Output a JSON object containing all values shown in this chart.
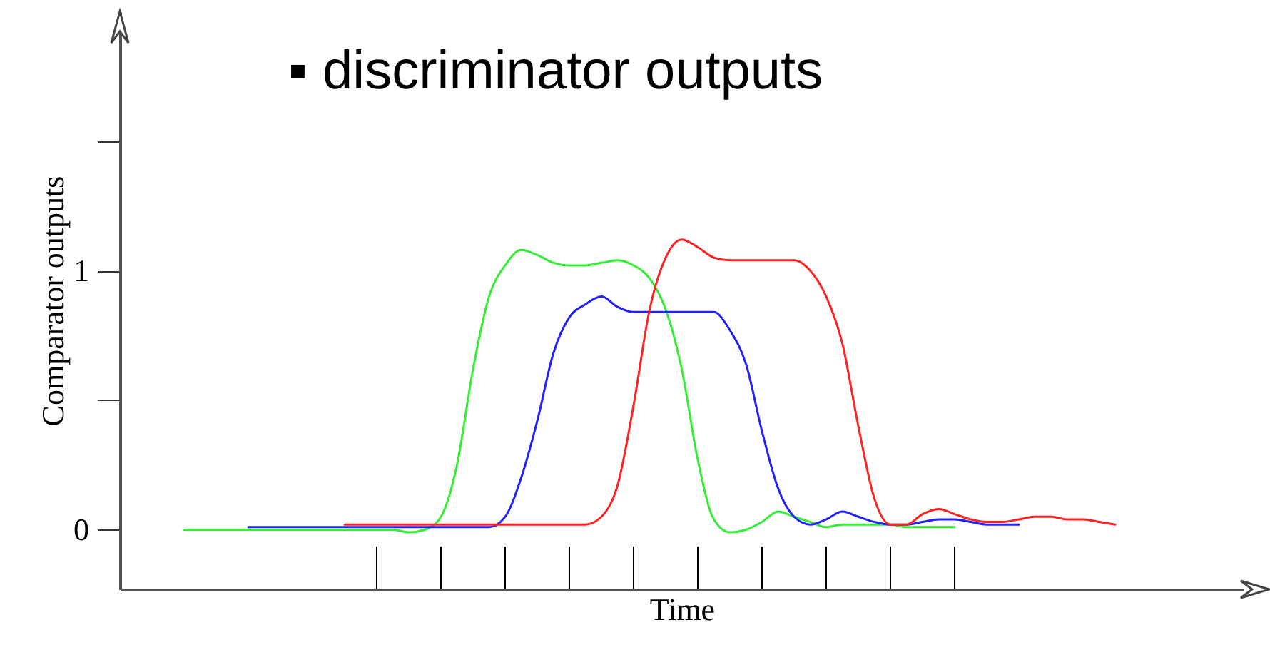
{
  "chart_data": {
    "type": "line",
    "title": "▪ discriminator outputs",
    "xlabel": "Time",
    "ylabel": "Comparator outputs",
    "categories": [
      null,
      null,
      null,
      null,
      null,
      null,
      null,
      null,
      null,
      null,
      null,
      null,
      null,
      null,
      null,
      null,
      null,
      null,
      null,
      null,
      null,
      null,
      null,
      null,
      null,
      null,
      null,
      null,
      null,
      null,
      null,
      null,
      null,
      null,
      null,
      null,
      null,
      null,
      null,
      null,
      null,
      null,
      null,
      null,
      null,
      null,
      null,
      null,
      null,
      null,
      null,
      null,
      null,
      null,
      null,
      null,
      null,
      null,
      null,
      null,
      null,
      null,
      null,
      null,
      null,
      null,
      null,
      null,
      null,
      null,
      null
    ],
    "series": [
      {
        "color": "#33ee33",
        "values": [
          null,
          null,
          null,
          null,
          0,
          0,
          0,
          0,
          0,
          0,
          0,
          0,
          0,
          0,
          0,
          0,
          0,
          0,
          -0.01,
          0,
          0.05,
          0.25,
          0.62,
          0.9,
          1.02,
          1.08,
          1.06,
          1.03,
          1.02,
          1.02,
          1.03,
          1.04,
          1.02,
          0.97,
          0.85,
          0.62,
          0.27,
          0.04,
          -0.01,
          0,
          0.03,
          0.07,
          0.05,
          0.03,
          0.01,
          0.02,
          0.02,
          0.02,
          0.02,
          0.01,
          0.01,
          0.01,
          0.01,
          null,
          null,
          null,
          null,
          null,
          null,
          null,
          null,
          null,
          null,
          null,
          null,
          null,
          null,
          null,
          null,
          null,
          null
        ]
      },
      {
        "color": "#2222ff",
        "values": [
          null,
          null,
          null,
          null,
          null,
          null,
          null,
          null,
          0.01,
          0.01,
          0.01,
          0.01,
          0.01,
          0.01,
          0.01,
          0.01,
          0.01,
          0.01,
          0.01,
          0.01,
          0.01,
          0.01,
          0.01,
          0.01,
          0.05,
          0.2,
          0.42,
          0.68,
          0.82,
          0.87,
          0.9,
          0.86,
          0.84,
          0.84,
          0.84,
          0.84,
          0.84,
          0.84,
          0.77,
          0.64,
          0.38,
          0.16,
          0.05,
          0.02,
          0.04,
          0.07,
          0.05,
          0.03,
          0.02,
          0.02,
          0.03,
          0.04,
          0.04,
          0.03,
          0.02,
          0.02,
          0.02,
          null,
          null,
          null,
          null,
          null,
          null,
          null,
          null,
          null,
          null,
          null,
          null,
          null,
          null
        ]
      },
      {
        "color": "#ff2222",
        "values": [
          null,
          null,
          null,
          null,
          null,
          null,
          null,
          null,
          null,
          null,
          null,
          null,
          null,
          null,
          0.02,
          0.02,
          0.02,
          0.02,
          0.02,
          0.02,
          0.02,
          0.02,
          0.02,
          0.02,
          0.02,
          0.02,
          0.02,
          0.02,
          0.02,
          0.02,
          0.05,
          0.17,
          0.48,
          0.85,
          1.05,
          1.12,
          1.09,
          1.05,
          1.04,
          1.04,
          1.04,
          1.04,
          1.04,
          1.0,
          0.9,
          0.72,
          0.4,
          0.12,
          0.02,
          0.02,
          0.06,
          0.08,
          0.06,
          0.04,
          0.03,
          0.03,
          0.04,
          0.05,
          0.05,
          0.04,
          0.04,
          0.03,
          0.02,
          null,
          null,
          null,
          null,
          null,
          null,
          null,
          null
        ]
      }
    ],
    "ylim": [
      -0.23,
      2.0
    ],
    "yticks": [
      0,
      {
        "value": 0.5,
        "label": null
      },
      1,
      {
        "value": 1.5,
        "label": null
      }
    ],
    "tick_labels": "y",
    "grid": false,
    "legend": false,
    "marker": "none",
    "line_style": "solid"
  }
}
